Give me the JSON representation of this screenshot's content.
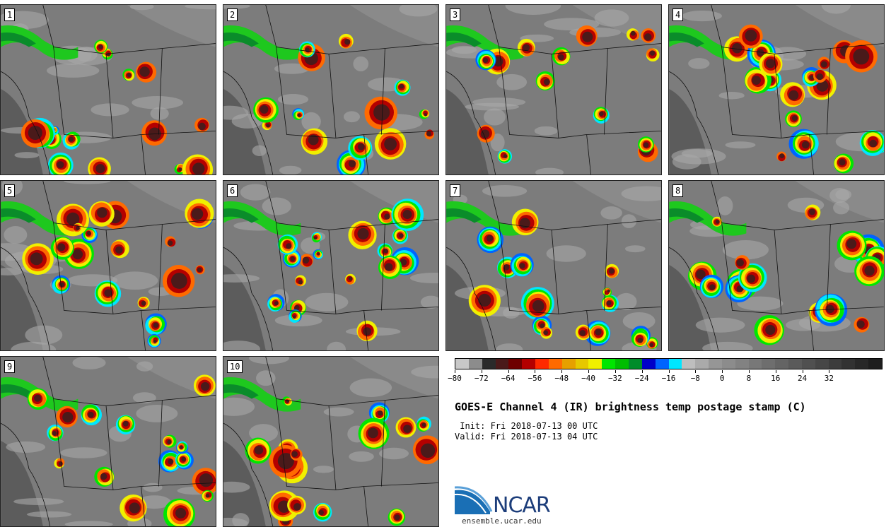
{
  "panels": [
    {
      "label": "1"
    },
    {
      "label": "2"
    },
    {
      "label": "3"
    },
    {
      "label": "4"
    },
    {
      "label": "5"
    },
    {
      "label": "6"
    },
    {
      "label": "7"
    },
    {
      "label": "8"
    },
    {
      "label": "9"
    },
    {
      "label": "10"
    }
  ],
  "colorbar": {
    "colors": [
      "#c8c8c8",
      "#8c8c8c",
      "#2a2a2a",
      "#4a1a1a",
      "#6e0000",
      "#b40000",
      "#ff2a00",
      "#ff6a00",
      "#e6a000",
      "#e6c800",
      "#f0f000",
      "#00e600",
      "#00be00",
      "#008c2a",
      "#0000c8",
      "#0064ff",
      "#00e6ff",
      "#bebebe",
      "#aaaaaa",
      "#969696",
      "#8c8c8c",
      "#828282",
      "#787878",
      "#6e6e6e",
      "#646464",
      "#5a5a5a",
      "#505050",
      "#464646",
      "#3c3c3c",
      "#323232",
      "#282828",
      "#1e1e1e"
    ],
    "tick_labels": [
      "−80",
      "−72",
      "−64",
      "−56",
      "−48",
      "−40",
      "−32",
      "−24",
      "−16",
      "−8",
      "0",
      "8",
      "16",
      "24",
      "32"
    ]
  },
  "title": "GOES-E Channel 4 (IR) brightness temp postage stamp (C)",
  "init": " Init: Fri 2018-07-13 00 UTC",
  "valid": "Valid: Fri 2018-07-13 04 UTC",
  "logo": {
    "text": "NCAR",
    "site": "ensemble.ucar.edu"
  }
}
